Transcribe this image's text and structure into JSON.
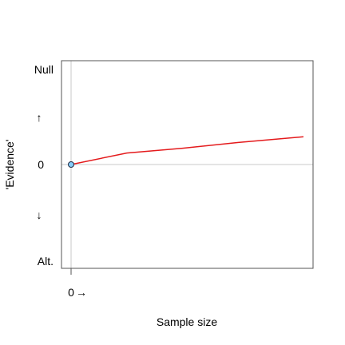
{
  "chart_data": {
    "type": "line",
    "title": "",
    "xlabel": "Sample size",
    "ylabel": "'Evidence'",
    "x_tick_label": "0",
    "y_tick_labels": {
      "top": "Null",
      "middle": "0",
      "bottom": "Alt."
    },
    "arrows": {
      "up": "↑",
      "down": "↓",
      "right": "→"
    },
    "xlim": [
      0,
      27
    ],
    "ylim": [
      -1,
      1
    ],
    "grid": "reference lines at x=0 and y=0",
    "series": [
      {
        "color": "#e41a1c",
        "x": [
          0,
          6,
          12,
          18,
          25
        ],
        "y": [
          0,
          0.12,
          0.17,
          0.23,
          0.29
        ]
      }
    ],
    "start_point": {
      "x": 0,
      "y": 0,
      "fill": "#87cefa",
      "stroke": "#1f2a44"
    }
  }
}
